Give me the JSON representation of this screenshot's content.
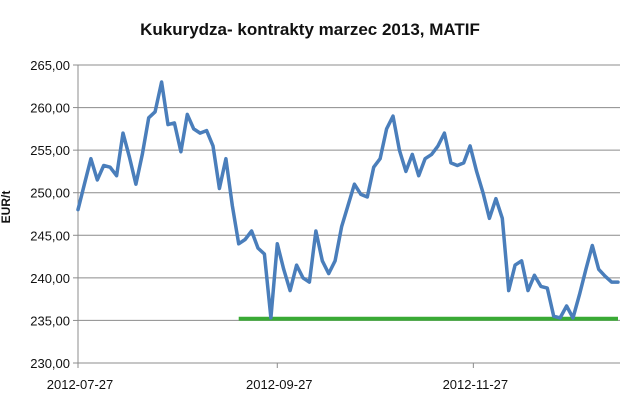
{
  "chart_data": {
    "type": "line",
    "title": "Kukurydza- kontrakty marzec 2013, MATIF",
    "ylabel": "EUR/t",
    "xlabel": "",
    "ylim": [
      230,
      265
    ],
    "yticks": [
      "230,00",
      "235,00",
      "240,00",
      "245,00",
      "250,00",
      "255,00",
      "260,00",
      "265,00"
    ],
    "yticks_values": [
      230,
      235,
      240,
      245,
      250,
      255,
      260,
      265
    ],
    "xticks": [
      "2012-07-27",
      "2012-09-27",
      "2012-11-27"
    ],
    "xticks_values": [
      0,
      62,
      123
    ],
    "xlim": [
      0,
      168
    ],
    "grid": true,
    "legend": "none",
    "series": [
      {
        "color": "#4a7ebb",
        "x": [
          0,
          2,
          4,
          6,
          8,
          10,
          12,
          14,
          16,
          18,
          20,
          22,
          24,
          26,
          28,
          30,
          32,
          34,
          36,
          38,
          40,
          42,
          44,
          46,
          48,
          50,
          52,
          54,
          56,
          58,
          60,
          62,
          64,
          66,
          68,
          70,
          72,
          74,
          76,
          78,
          80,
          82,
          84,
          86,
          88,
          90,
          92,
          94,
          96,
          98,
          100,
          102,
          104,
          106,
          108,
          110,
          112,
          114,
          116,
          118,
          120,
          122,
          124,
          126,
          128,
          130,
          132,
          134,
          136,
          138,
          140,
          142,
          144,
          146,
          148,
          150,
          152,
          154,
          156,
          158,
          160,
          162,
          164,
          166,
          168
        ],
        "values": [
          248.0,
          251.0,
          254.0,
          251.5,
          253.2,
          253.0,
          252.0,
          257.0,
          254.2,
          251.0,
          254.5,
          258.8,
          259.5,
          263.0,
          258.0,
          258.2,
          254.8,
          259.2,
          257.5,
          257.0,
          257.3,
          255.5,
          250.5,
          254.0,
          248.5,
          244.0,
          244.5,
          245.5,
          243.5,
          242.8,
          235.3,
          244.0,
          241.0,
          238.5,
          241.5,
          240.0,
          239.5,
          245.5,
          242.0,
          240.5,
          242.0,
          246.0,
          248.5,
          251.0,
          249.8,
          249.5,
          253.0,
          254.0,
          257.5,
          259.0,
          255.0,
          252.5,
          254.5,
          252.0,
          254.0,
          254.5,
          255.5,
          257.0,
          253.5,
          253.2,
          253.5,
          255.5,
          252.5,
          250.0,
          247.0,
          249.3,
          247.0,
          238.5,
          241.5,
          242.0,
          238.5,
          240.3,
          239.0,
          238.8,
          235.5,
          235.3,
          236.7,
          235.3,
          238.0,
          241.0,
          243.8,
          241.0,
          240.2,
          239.5,
          239.5
        ]
      }
    ],
    "support_line": {
      "value": 235.2,
      "x_from": 50,
      "x_to": 168,
      "color": "#3aaa35"
    }
  }
}
